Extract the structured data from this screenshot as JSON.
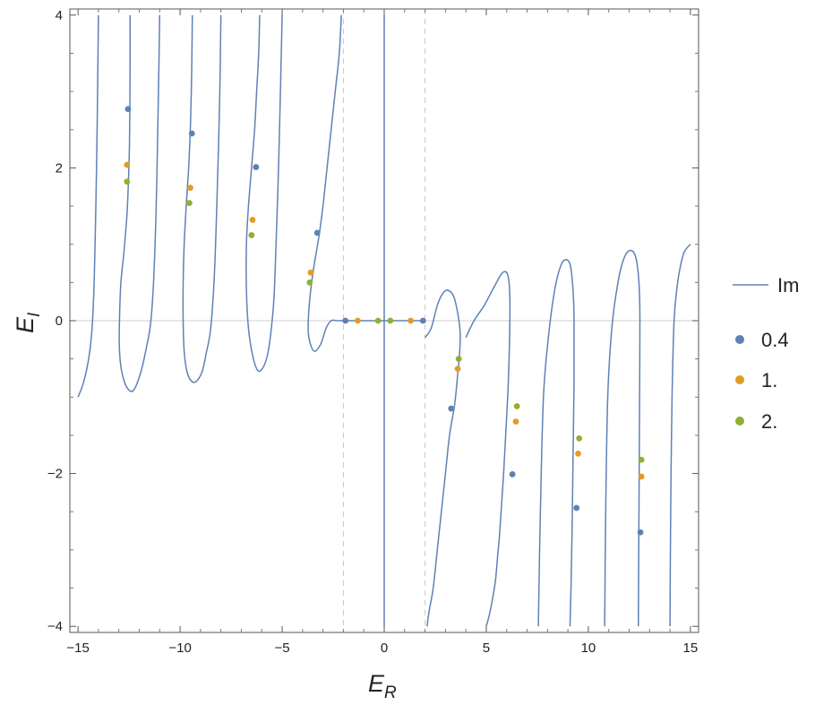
{
  "chart_data": {
    "type": "line",
    "xlabel": "E",
    "xlabel_sub": "R",
    "ylabel": "E",
    "ylabel_sub": "I",
    "xlim": [
      -15.4,
      15.4
    ],
    "ylim": [
      -4.08,
      4.08
    ],
    "xticks": [
      -15,
      -10,
      -5,
      0,
      5,
      10,
      15
    ],
    "xtick_labels": [
      "−15",
      "−10",
      "−5",
      "0",
      "5",
      "10",
      "15"
    ],
    "yticks": [
      -4,
      -2,
      0,
      2,
      4
    ],
    "ytick_labels": [
      "−4",
      "−2",
      "0",
      "2",
      "4"
    ],
    "reference_lines": {
      "dashed_vertical_x": [
        -2,
        2
      ],
      "horizontal_zero": true
    },
    "grid": false,
    "legend_position": "right",
    "colors": {
      "line": "#5e81b5",
      "s04": "#5e81b5",
      "s1": "#e19c24",
      "s2": "#8fb032"
    },
    "line_series": {
      "name": "Im",
      "curves": [
        {
          "x": [
            -15.0,
            -14.72,
            -14.45,
            -14.3,
            -14.2,
            -14.12,
            -14.06,
            -14.02,
            -14.0
          ],
          "y": [
            -1.0,
            -0.8,
            -0.45,
            -0.05,
            0.6,
            1.6,
            2.6,
            3.5,
            4.0
          ]
        },
        {
          "x": [
            -12.45,
            -12.45,
            -12.46,
            -12.48,
            -12.52,
            -12.6,
            -12.75,
            -12.9,
            -12.96,
            -12.98,
            -12.9,
            -12.7,
            -12.45,
            -12.25,
            -12.05,
            -11.85,
            -11.65,
            -11.45,
            -11.3,
            -11.18,
            -11.1,
            -11.04,
            -11.0
          ],
          "y": [
            4.0,
            3.4,
            2.8,
            2.3,
            1.9,
            1.4,
            0.9,
            0.5,
            0.1,
            -0.3,
            -0.6,
            -0.82,
            -0.92,
            -0.9,
            -0.78,
            -0.6,
            -0.35,
            -0.05,
            0.5,
            1.4,
            2.4,
            3.3,
            4.0
          ]
        },
        {
          "x": [
            -9.4,
            -9.42,
            -9.45,
            -9.5,
            -9.58,
            -9.7,
            -9.8,
            -9.85,
            -9.85,
            -9.8,
            -9.65,
            -9.4,
            -9.15,
            -8.9,
            -8.7,
            -8.5,
            -8.32,
            -8.18,
            -8.06,
            -8.0
          ],
          "y": [
            4.0,
            3.5,
            3.0,
            2.5,
            2.0,
            1.5,
            1.0,
            0.5,
            0.0,
            -0.4,
            -0.68,
            -0.8,
            -0.78,
            -0.65,
            -0.4,
            -0.1,
            0.6,
            1.7,
            2.9,
            4.0
          ]
        },
        {
          "x": [
            -6.1,
            -6.15,
            -6.25,
            -6.35,
            -6.5,
            -6.65,
            -6.75,
            -6.75,
            -6.65,
            -6.45,
            -6.2,
            -5.95,
            -5.72,
            -5.55,
            -5.4,
            -5.3,
            -5.2,
            -5.12,
            -5.05,
            -5.0
          ],
          "y": [
            4.0,
            3.5,
            3.0,
            2.5,
            2.0,
            1.5,
            1.0,
            0.4,
            -0.1,
            -0.45,
            -0.65,
            -0.62,
            -0.45,
            -0.15,
            0.3,
            1.0,
            1.8,
            2.6,
            3.4,
            4.0
          ]
        },
        {
          "x": [
            -2.1,
            -2.2,
            -2.4,
            -2.6,
            -2.8,
            -3.0,
            -3.2,
            -3.45,
            -3.6,
            -3.7,
            -3.72,
            -3.6,
            -3.4,
            -3.1,
            -2.85,
            -2.6,
            -2.3,
            -2.0
          ],
          "y": [
            4.0,
            3.5,
            3.0,
            2.5,
            2.0,
            1.5,
            1.1,
            0.7,
            0.4,
            0.1,
            -0.15,
            -0.32,
            -0.4,
            -0.3,
            -0.1,
            0.0,
            0.0,
            0.0
          ]
        },
        {
          "x": [
            -2.0,
            2.0
          ],
          "y": [
            0.0,
            0.0
          ]
        },
        {
          "x": [
            0.0,
            0.0
          ],
          "y": [
            4.0,
            -4.0
          ]
        },
        {
          "x": [
            2.0,
            2.3,
            2.6,
            2.85,
            3.1,
            3.4,
            3.6,
            3.72,
            3.7,
            3.6,
            3.45,
            3.2,
            3.0,
            2.8,
            2.6,
            2.4,
            2.2,
            2.1
          ],
          "y": [
            -0.22,
            -0.1,
            0.2,
            0.35,
            0.4,
            0.32,
            0.1,
            -0.15,
            -0.4,
            -0.7,
            -1.1,
            -1.5,
            -2.0,
            -2.5,
            -3.0,
            -3.5,
            -3.8,
            -4.0
          ]
        },
        {
          "x": [
            4.0,
            4.4,
            4.9,
            5.4,
            5.8,
            6.05,
            6.15,
            6.15,
            6.08,
            5.95,
            5.85,
            5.75,
            5.65,
            5.55,
            5.45,
            5.3,
            5.15,
            5.0
          ],
          "y": [
            -0.22,
            0.0,
            0.2,
            0.45,
            0.63,
            0.6,
            0.35,
            -0.1,
            -0.8,
            -1.5,
            -2.0,
            -2.4,
            -2.8,
            -3.1,
            -3.4,
            -3.65,
            -3.85,
            -4.0
          ]
        },
        {
          "x": [
            7.55,
            7.65,
            7.8,
            8.05,
            8.35,
            8.65,
            8.9,
            9.12,
            9.25,
            9.3,
            9.3,
            9.25,
            9.2,
            9.15,
            9.1
          ],
          "y": [
            -4.0,
            -2.5,
            -1.0,
            -0.2,
            0.4,
            0.72,
            0.8,
            0.72,
            0.4,
            0.0,
            -0.8,
            -1.8,
            -2.8,
            -3.5,
            -4.0
          ]
        },
        {
          "x": [
            10.8,
            10.85,
            10.95,
            11.15,
            11.45,
            11.75,
            12.05,
            12.3,
            12.45,
            12.52,
            12.52,
            12.5,
            12.48,
            12.46,
            12.45
          ],
          "y": [
            -4.0,
            -2.5,
            -1.0,
            -0.1,
            0.5,
            0.82,
            0.92,
            0.85,
            0.6,
            0.2,
            -0.5,
            -1.5,
            -2.5,
            -3.4,
            -4.0
          ]
        },
        {
          "x": [
            14.0,
            14.02,
            14.05,
            14.1,
            14.2,
            14.35,
            14.5,
            14.7,
            15.0
          ],
          "y": [
            -4.0,
            -3.0,
            -2.0,
            -1.0,
            0.0,
            0.45,
            0.7,
            0.9,
            1.0
          ]
        }
      ]
    },
    "series": [
      {
        "name": "0.4",
        "x": [
          -12.55,
          -9.42,
          -6.28,
          -3.28,
          -1.9,
          1.9,
          3.28,
          6.28,
          9.42,
          12.55
        ],
        "y": [
          2.77,
          2.45,
          2.01,
          1.15,
          0.0,
          0.0,
          -1.15,
          -2.01,
          -2.45,
          -2.77
        ]
      },
      {
        "name": "1.",
        "x": [
          -12.6,
          -9.5,
          -6.45,
          -3.6,
          -1.3,
          1.3,
          3.6,
          6.45,
          9.5,
          12.6
        ],
        "y": [
          2.04,
          1.74,
          1.32,
          0.63,
          0.0,
          0.0,
          -0.63,
          -1.32,
          -1.74,
          -2.04
        ]
      },
      {
        "name": "2.",
        "x": [
          -12.6,
          -9.55,
          -6.5,
          -3.65,
          -0.3,
          0.3,
          3.65,
          6.5,
          9.55,
          12.6
        ],
        "y": [
          1.82,
          1.54,
          1.12,
          0.5,
          0.0,
          0.0,
          -0.5,
          -1.12,
          -1.54,
          -1.82
        ]
      }
    ]
  }
}
